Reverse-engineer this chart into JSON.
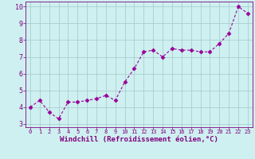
{
  "x": [
    0,
    1,
    2,
    3,
    4,
    5,
    6,
    7,
    8,
    9,
    10,
    11,
    12,
    13,
    14,
    15,
    16,
    17,
    18,
    19,
    20,
    21,
    22,
    23
  ],
  "y": [
    4.0,
    4.4,
    3.7,
    3.3,
    4.3,
    4.3,
    4.4,
    4.5,
    4.7,
    4.4,
    5.5,
    6.3,
    7.3,
    7.4,
    7.0,
    7.5,
    7.4,
    7.4,
    7.3,
    7.3,
    7.8,
    8.4,
    10.0,
    9.6
  ],
  "line_color": "#990099",
  "marker": "D",
  "marker_size": 2.5,
  "bg_color": "#cef0f0",
  "grid_color": "#aacece",
  "xlabel": "Windchill (Refroidissement éolien,°C)",
  "xlim": [
    -0.5,
    23.5
  ],
  "ylim": [
    2.8,
    10.3
  ],
  "yticks": [
    3,
    4,
    5,
    6,
    7,
    8,
    9,
    10
  ],
  "xticks": [
    0,
    1,
    2,
    3,
    4,
    5,
    6,
    7,
    8,
    9,
    10,
    11,
    12,
    13,
    14,
    15,
    16,
    17,
    18,
    19,
    20,
    21,
    22,
    23
  ],
  "tick_color": "#800080",
  "spine_color": "#800080",
  "xlabel_fontsize": 6.5,
  "xtick_fontsize": 5.0,
  "ytick_fontsize": 6.0
}
